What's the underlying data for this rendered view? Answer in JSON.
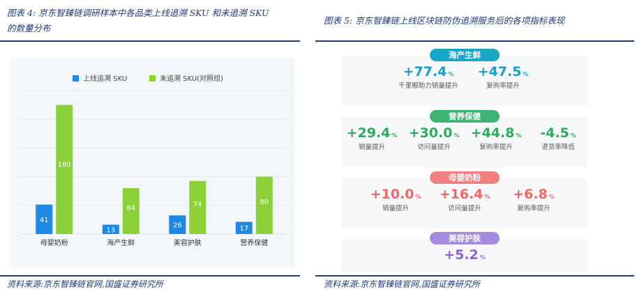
{
  "left": {
    "caption_line1": "图表 4:  京东智臻链调研样本中各品类上线追溯 SKU 和未追溯 SKU",
    "caption_line2": "的数量分布",
    "source": "资料来源:京东智臻链官网,国盛证券研究所"
  },
  "right": {
    "caption": "图表 5:  京东智臻链上线区块链防伪追溯服务后的各项指标表现",
    "source": "资料来源:京东智臻链官网,国盛证券研究所",
    "groups": [
      {
        "title": "海产生鲜",
        "color": "#1aa6c7",
        "value_color": "#1a9fc4",
        "metrics": [
          {
            "value": "+77.4",
            "unit": "%",
            "label": "千里眼助力销量提升"
          },
          {
            "value": "+47.5",
            "unit": "%",
            "label": "复购率提升"
          }
        ]
      },
      {
        "title": "营养保健",
        "color": "#3cb371",
        "value_color": "#2eaa5c",
        "metrics": [
          {
            "value": "+29.4",
            "unit": "%",
            "label": "销量提升"
          },
          {
            "value": "+30.0",
            "unit": "%",
            "label": "访问量提升"
          },
          {
            "value": "+44.8",
            "unit": "%",
            "label": "复购率提升"
          },
          {
            "value": "-4.5",
            "unit": "%",
            "label": "退货率降低"
          }
        ]
      },
      {
        "title": "母婴奶粉",
        "color": "#f08080",
        "value_color": "#ee6666",
        "metrics": [
          {
            "value": "+10.0",
            "unit": "%",
            "label": "销量提升"
          },
          {
            "value": "+16.4",
            "unit": "%",
            "label": "访问量提升"
          },
          {
            "value": "+6.8",
            "unit": "%",
            "label": "复购率提升"
          }
        ]
      },
      {
        "title": "美容护肤",
        "color": "#a58be0",
        "value_color": "#8a63d2",
        "metrics": [
          {
            "value": "+5.2",
            "unit": "%",
            "label": ""
          }
        ]
      }
    ]
  },
  "colors": {
    "traced": "#1e88e5",
    "untraced": "#8bd13a",
    "rule": "#1f3a78"
  },
  "chart_data": {
    "type": "bar",
    "categories": [
      "母婴奶粉",
      "海产生鲜",
      "美容护肤",
      "营养保健"
    ],
    "series": [
      {
        "name": "上线追溯 SKU",
        "values": [
          41,
          13,
          26,
          17
        ]
      },
      {
        "name": "未追溯 SKU(对照组)",
        "values": [
          180,
          64,
          74,
          80
        ]
      }
    ],
    "ylim": [
      0,
      200
    ],
    "grid": true,
    "legend": "top"
  }
}
